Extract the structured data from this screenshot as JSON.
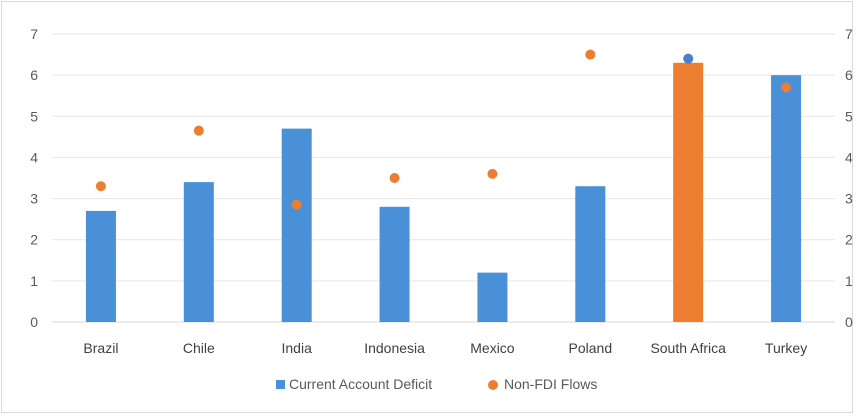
{
  "chart_data": {
    "type": "bar",
    "categories": [
      "Brazil",
      "Chile",
      "India",
      "Indonesia",
      "Mexico",
      "Poland",
      "South Africa",
      "Turkey"
    ],
    "series": [
      {
        "name": "Current Account Deficit",
        "kind": "bar",
        "values": [
          2.7,
          3.4,
          4.7,
          2.8,
          1.2,
          3.3,
          6.3,
          6.0
        ],
        "color": "#4a90d9",
        "highlight": {
          "index": 6,
          "color": "#ed7d31"
        }
      },
      {
        "name": "Non-FDI Flows",
        "kind": "scatter",
        "values": [
          3.3,
          4.65,
          2.85,
          3.5,
          3.6,
          6.5,
          6.4,
          5.7
        ],
        "color": "#ed7d31",
        "highlight": {
          "index": 6,
          "color": "#4a7fd0"
        }
      }
    ],
    "ylim": [
      0,
      7
    ],
    "yticks": [
      "0",
      "1",
      "2",
      "3",
      "4",
      "5",
      "6",
      "7"
    ],
    "right_axis_ticks": [
      "0",
      "1",
      "2",
      "3",
      "4",
      "5",
      "6",
      "7"
    ],
    "grid": true,
    "legend_position": "bottom"
  }
}
